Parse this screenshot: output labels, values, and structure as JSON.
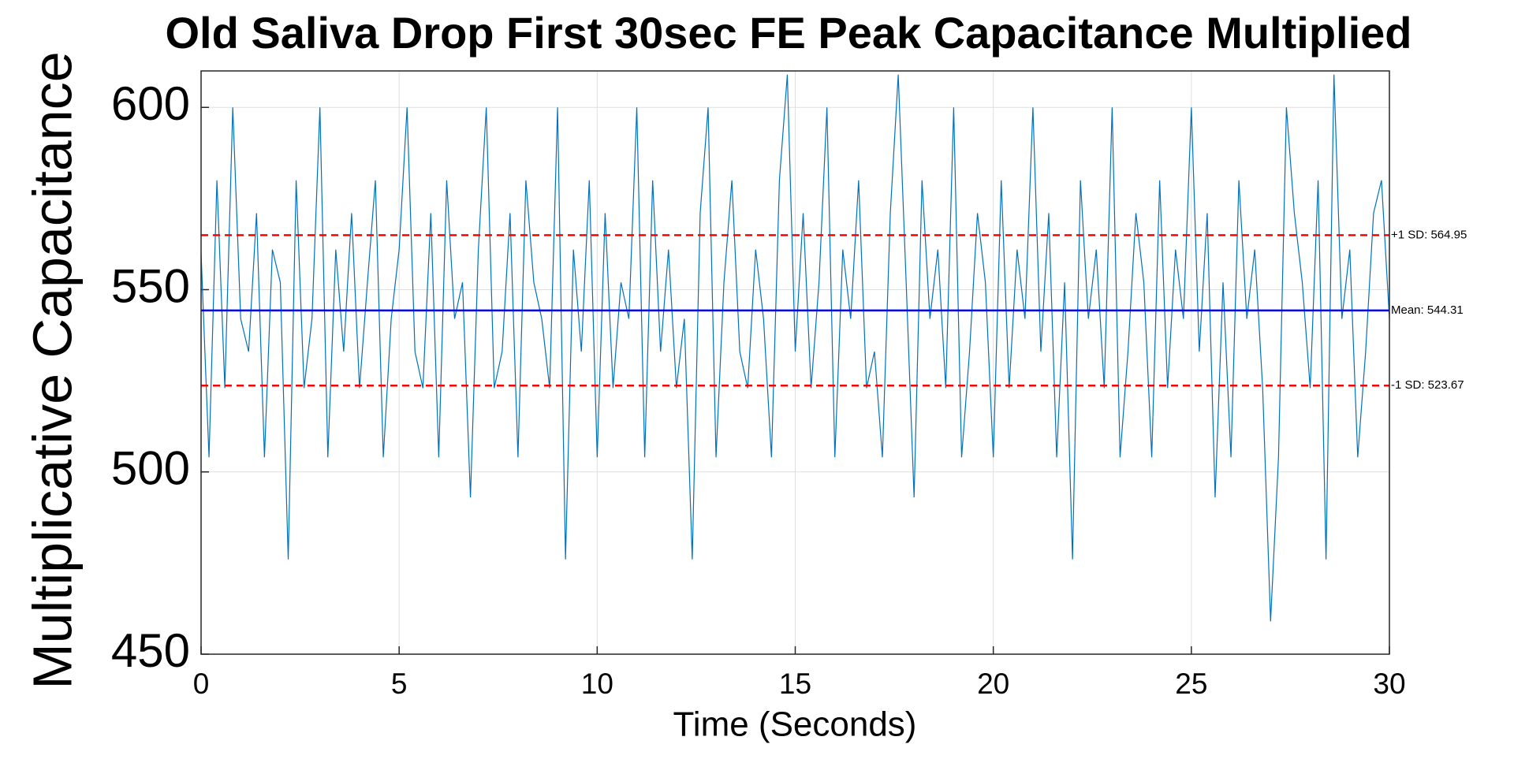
{
  "chart_data": {
    "type": "line",
    "title": "Old Saliva Drop First 30sec FE Peak Capacitance Multiplied",
    "x_label": "Time (Seconds)",
    "y_label": "Multiplicative Capacitance",
    "color": "#0072bd",
    "grid": true,
    "xlim": [
      0,
      30
    ],
    "xticks": [
      0,
      5,
      10,
      15,
      20,
      25,
      30
    ],
    "ylim": [
      450,
      610
    ],
    "yticks": [
      450,
      500,
      550,
      600
    ],
    "reference_lines": [
      {
        "value": 564.95,
        "label": "+1 SD: 564.95",
        "color": "#ff0000",
        "dashed": true
      },
      {
        "value": 544.31,
        "label": "Mean: 544.31",
        "color": "#0000ff",
        "dashed": false
      },
      {
        "value": 523.67,
        "label": "-1 SD: 523.67",
        "color": "#ff0000",
        "dashed": true
      }
    ],
    "x": [
      0,
      0.2,
      0.4,
      0.6,
      0.8,
      1,
      1.2,
      1.4,
      1.6,
      1.8,
      2,
      2.2,
      2.4,
      2.6,
      2.8,
      3,
      3.2,
      3.4,
      3.6,
      3.8,
      4,
      4.2,
      4.4,
      4.6,
      4.8,
      5,
      5.2,
      5.4,
      5.6,
      5.8,
      6,
      6.2,
      6.4,
      6.6,
      6.8,
      7,
      7.2,
      7.4,
      7.6,
      7.8,
      8,
      8.2,
      8.4,
      8.6,
      8.8,
      9,
      9.2,
      9.4,
      9.6,
      9.8,
      10,
      10.2,
      10.4,
      10.6,
      10.8,
      11,
      11.2,
      11.4,
      11.6,
      11.8,
      12,
      12.2,
      12.4,
      12.6,
      12.8,
      13,
      13.2,
      13.4,
      13.6,
      13.8,
      14,
      14.2,
      14.4,
      14.6,
      14.8,
      15,
      15.2,
      15.4,
      15.6,
      15.8,
      16,
      16.2,
      16.4,
      16.6,
      16.8,
      17,
      17.2,
      17.4,
      17.6,
      17.8,
      18,
      18.2,
      18.4,
      18.6,
      18.8,
      19,
      19.2,
      19.4,
      19.6,
      19.8,
      20,
      20.2,
      20.4,
      20.6,
      20.8,
      21,
      21.2,
      21.4,
      21.6,
      21.8,
      22,
      22.2,
      22.4,
      22.6,
      22.8,
      23,
      23.2,
      23.4,
      23.6,
      23.8,
      24,
      24.2,
      24.4,
      24.6,
      24.8,
      25,
      25.2,
      25.4,
      25.6,
      25.8,
      26,
      26.2,
      26.4,
      26.6,
      26.8,
      27,
      27.2,
      27.4,
      27.6,
      27.8,
      28,
      28.2,
      28.4,
      28.6,
      28.8,
      29,
      29.2,
      29.4,
      29.6,
      29.8,
      30
    ],
    "values": [
      560,
      504,
      580,
      523,
      600,
      542,
      533,
      571,
      504,
      561,
      552,
      476,
      580,
      523,
      542,
      600,
      504,
      561,
      533,
      571,
      523,
      552,
      580,
      504,
      542,
      561,
      600,
      533,
      523,
      571,
      504,
      580,
      542,
      552,
      493,
      561,
      600,
      523,
      533,
      571,
      504,
      580,
      552,
      542,
      523,
      600,
      476,
      561,
      533,
      580,
      504,
      571,
      523,
      552,
      542,
      600,
      504,
      580,
      533,
      561,
      523,
      542,
      476,
      571,
      600,
      504,
      552,
      580,
      533,
      523,
      561,
      542,
      504,
      580,
      609,
      533,
      571,
      523,
      552,
      600,
      504,
      561,
      542,
      580,
      523,
      533,
      504,
      571,
      609,
      552,
      493,
      580,
      542,
      561,
      523,
      600,
      504,
      533,
      571,
      552,
      504,
      580,
      523,
      561,
      542,
      600,
      533,
      571,
      504,
      552,
      476,
      580,
      542,
      561,
      523,
      600,
      504,
      533,
      571,
      552,
      504,
      580,
      523,
      561,
      542,
      600,
      533,
      571,
      493,
      552,
      504,
      580,
      542,
      561,
      523,
      459,
      504,
      600,
      571,
      552,
      523,
      580,
      476,
      609,
      542,
      561,
      504,
      533,
      571,
      580,
      542
    ]
  }
}
